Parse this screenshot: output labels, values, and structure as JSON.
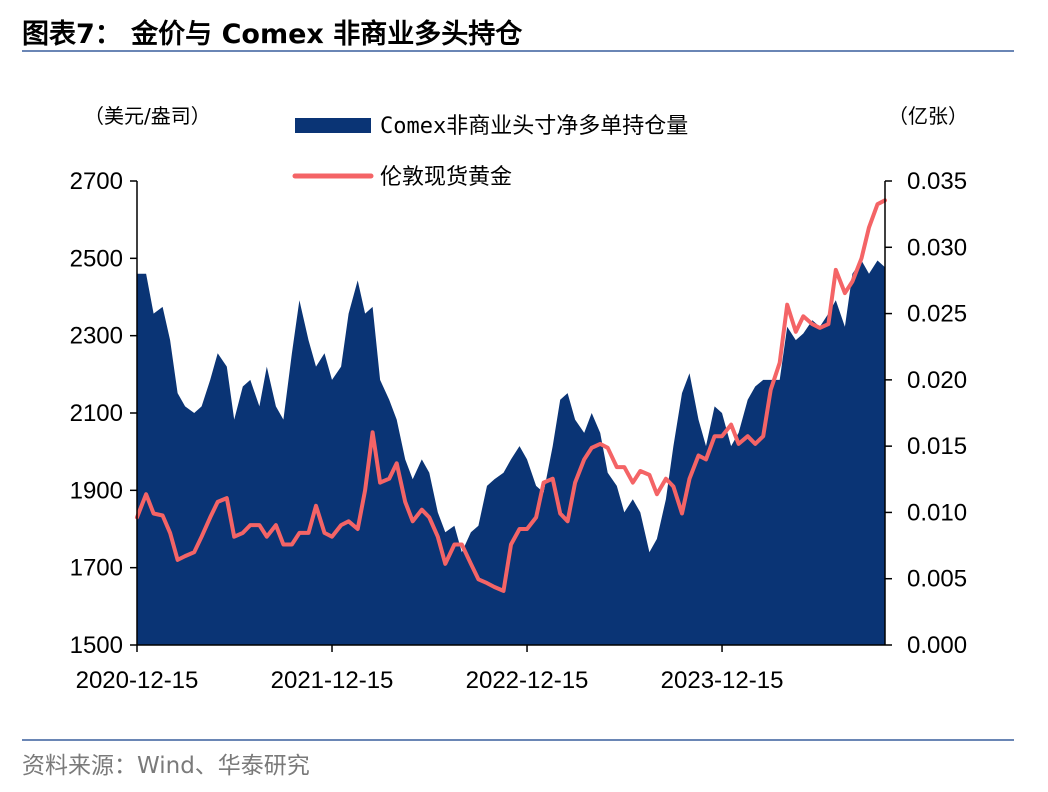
{
  "title": "图表7： 金价与 Comex 非商业多头持仓",
  "source": "资料来源：Wind、华泰研究",
  "colors": {
    "area": "#0a3475",
    "line": "#f46466",
    "rule": "#6a86b5",
    "source_text": "#7a7a7a"
  },
  "chart_data": {
    "type": "area+line",
    "left_axis": {
      "unit": "（美元/盎司）",
      "ylim": [
        1500,
        2700
      ],
      "ticks": [
        "1500",
        "1700",
        "1900",
        "2100",
        "2300",
        "2500",
        "2700"
      ]
    },
    "right_axis": {
      "unit": "（亿张）",
      "ylim": [
        0.0,
        0.035
      ],
      "ticks": [
        "0.000",
        "0.005",
        "0.010",
        "0.015",
        "0.020",
        "0.025",
        "0.030",
        "0.035"
      ]
    },
    "x_ticks": [
      "2020-12-15",
      "2021-12-15",
      "2022-12-15",
      "2023-12-15"
    ],
    "x_range": [
      "2020-12-15",
      "2024-10-15"
    ],
    "legend_placement": "top-center",
    "series": [
      {
        "name": "Comex非商业头寸净多单持仓量",
        "kind": "area",
        "axis": "right",
        "points": [
          [
            "2020-12-15",
            0.028
          ],
          [
            "2021-01-01",
            0.028
          ],
          [
            "2021-01-15",
            0.025
          ],
          [
            "2021-02-01",
            0.0255
          ],
          [
            "2021-02-15",
            0.023
          ],
          [
            "2021-03-01",
            0.019
          ],
          [
            "2021-03-15",
            0.018
          ],
          [
            "2021-04-01",
            0.0175
          ],
          [
            "2021-04-15",
            0.018
          ],
          [
            "2021-05-01",
            0.02
          ],
          [
            "2021-05-15",
            0.022
          ],
          [
            "2021-06-01",
            0.021
          ],
          [
            "2021-06-15",
            0.017
          ],
          [
            "2021-07-01",
            0.0195
          ],
          [
            "2021-07-15",
            0.02
          ],
          [
            "2021-08-01",
            0.018
          ],
          [
            "2021-08-15",
            0.021
          ],
          [
            "2021-09-01",
            0.018
          ],
          [
            "2021-09-15",
            0.017
          ],
          [
            "2021-10-01",
            0.022
          ],
          [
            "2021-10-15",
            0.026
          ],
          [
            "2021-11-01",
            0.023
          ],
          [
            "2021-11-15",
            0.021
          ],
          [
            "2021-12-01",
            0.022
          ],
          [
            "2021-12-15",
            0.02
          ],
          [
            "2022-01-01",
            0.021
          ],
          [
            "2022-01-15",
            0.025
          ],
          [
            "2022-02-01",
            0.0275
          ],
          [
            "2022-02-15",
            0.025
          ],
          [
            "2022-03-01",
            0.0255
          ],
          [
            "2022-03-15",
            0.02
          ],
          [
            "2022-04-01",
            0.0185
          ],
          [
            "2022-04-15",
            0.017
          ],
          [
            "2022-05-01",
            0.014
          ],
          [
            "2022-05-15",
            0.0125
          ],
          [
            "2022-06-01",
            0.014
          ],
          [
            "2022-06-15",
            0.013
          ],
          [
            "2022-07-01",
            0.01
          ],
          [
            "2022-07-15",
            0.0085
          ],
          [
            "2022-08-01",
            0.009
          ],
          [
            "2022-08-15",
            0.007
          ],
          [
            "2022-09-01",
            0.0085
          ],
          [
            "2022-09-15",
            0.009
          ],
          [
            "2022-10-01",
            0.012
          ],
          [
            "2022-10-15",
            0.0125
          ],
          [
            "2022-11-01",
            0.013
          ],
          [
            "2022-11-15",
            0.014
          ],
          [
            "2022-12-01",
            0.015
          ],
          [
            "2022-12-15",
            0.014
          ],
          [
            "2023-01-01",
            0.012
          ],
          [
            "2023-01-15",
            0.0115
          ],
          [
            "2023-02-01",
            0.015
          ],
          [
            "2023-02-15",
            0.0185
          ],
          [
            "2023-03-01",
            0.019
          ],
          [
            "2023-03-15",
            0.017
          ],
          [
            "2023-04-01",
            0.016
          ],
          [
            "2023-04-15",
            0.0175
          ],
          [
            "2023-05-01",
            0.016
          ],
          [
            "2023-05-15",
            0.013
          ],
          [
            "2023-06-01",
            0.012
          ],
          [
            "2023-06-15",
            0.01
          ],
          [
            "2023-07-01",
            0.011
          ],
          [
            "2023-07-15",
            0.01
          ],
          [
            "2023-08-01",
            0.007
          ],
          [
            "2023-08-15",
            0.008
          ],
          [
            "2023-09-01",
            0.011
          ],
          [
            "2023-09-15",
            0.015
          ],
          [
            "2023-10-01",
            0.019
          ],
          [
            "2023-10-15",
            0.0205
          ],
          [
            "2023-11-01",
            0.017
          ],
          [
            "2023-11-15",
            0.015
          ],
          [
            "2023-12-01",
            0.018
          ],
          [
            "2023-12-15",
            0.0175
          ],
          [
            "2024-01-01",
            0.015
          ],
          [
            "2024-01-15",
            0.016
          ],
          [
            "2024-02-01",
            0.0185
          ],
          [
            "2024-02-15",
            0.0195
          ],
          [
            "2024-03-01",
            0.02
          ],
          [
            "2024-03-15",
            0.02
          ],
          [
            "2024-04-01",
            0.02
          ],
          [
            "2024-04-15",
            0.024
          ],
          [
            "2024-05-01",
            0.023
          ],
          [
            "2024-05-15",
            0.0235
          ],
          [
            "2024-06-01",
            0.0245
          ],
          [
            "2024-06-15",
            0.024
          ],
          [
            "2024-07-01",
            0.025
          ],
          [
            "2024-07-15",
            0.026
          ],
          [
            "2024-08-01",
            0.024
          ],
          [
            "2024-08-15",
            0.028
          ],
          [
            "2024-09-01",
            0.029
          ],
          [
            "2024-09-15",
            0.028
          ],
          [
            "2024-10-01",
            0.029
          ],
          [
            "2024-10-15",
            0.0285
          ]
        ]
      },
      {
        "name": "伦敦现货黄金",
        "kind": "line",
        "axis": "left",
        "points": [
          [
            "2020-12-15",
            1830
          ],
          [
            "2021-01-01",
            1890
          ],
          [
            "2021-01-15",
            1840
          ],
          [
            "2021-02-01",
            1835
          ],
          [
            "2021-02-15",
            1790
          ],
          [
            "2021-03-01",
            1720
          ],
          [
            "2021-03-15",
            1730
          ],
          [
            "2021-04-01",
            1740
          ],
          [
            "2021-04-15",
            1780
          ],
          [
            "2021-05-01",
            1830
          ],
          [
            "2021-05-15",
            1870
          ],
          [
            "2021-06-01",
            1880
          ],
          [
            "2021-06-15",
            1780
          ],
          [
            "2021-07-01",
            1790
          ],
          [
            "2021-07-15",
            1810
          ],
          [
            "2021-08-01",
            1810
          ],
          [
            "2021-08-15",
            1780
          ],
          [
            "2021-09-01",
            1810
          ],
          [
            "2021-09-15",
            1760
          ],
          [
            "2021-10-01",
            1760
          ],
          [
            "2021-10-15",
            1790
          ],
          [
            "2021-11-01",
            1790
          ],
          [
            "2021-11-15",
            1860
          ],
          [
            "2021-12-01",
            1790
          ],
          [
            "2021-12-15",
            1780
          ],
          [
            "2022-01-01",
            1810
          ],
          [
            "2022-01-15",
            1820
          ],
          [
            "2022-02-01",
            1800
          ],
          [
            "2022-02-15",
            1900
          ],
          [
            "2022-03-01",
            2050
          ],
          [
            "2022-03-15",
            1920
          ],
          [
            "2022-04-01",
            1930
          ],
          [
            "2022-04-15",
            1970
          ],
          [
            "2022-05-01",
            1870
          ],
          [
            "2022-05-15",
            1820
          ],
          [
            "2022-06-01",
            1850
          ],
          [
            "2022-06-15",
            1830
          ],
          [
            "2022-07-01",
            1780
          ],
          [
            "2022-07-15",
            1710
          ],
          [
            "2022-08-01",
            1760
          ],
          [
            "2022-08-15",
            1760
          ],
          [
            "2022-09-01",
            1710
          ],
          [
            "2022-09-15",
            1670
          ],
          [
            "2022-10-01",
            1660
          ],
          [
            "2022-10-15",
            1650
          ],
          [
            "2022-11-01",
            1640
          ],
          [
            "2022-11-15",
            1760
          ],
          [
            "2022-12-01",
            1800
          ],
          [
            "2022-12-15",
            1800
          ],
          [
            "2023-01-01",
            1830
          ],
          [
            "2023-01-15",
            1920
          ],
          [
            "2023-02-01",
            1930
          ],
          [
            "2023-02-15",
            1840
          ],
          [
            "2023-03-01",
            1820
          ],
          [
            "2023-03-15",
            1920
          ],
          [
            "2023-04-01",
            1980
          ],
          [
            "2023-04-15",
            2010
          ],
          [
            "2023-05-01",
            2020
          ],
          [
            "2023-05-15",
            2010
          ],
          [
            "2023-06-01",
            1960
          ],
          [
            "2023-06-15",
            1960
          ],
          [
            "2023-07-01",
            1920
          ],
          [
            "2023-07-15",
            1950
          ],
          [
            "2023-08-01",
            1940
          ],
          [
            "2023-08-15",
            1890
          ],
          [
            "2023-09-01",
            1930
          ],
          [
            "2023-09-15",
            1910
          ],
          [
            "2023-10-01",
            1840
          ],
          [
            "2023-10-15",
            1930
          ],
          [
            "2023-11-01",
            1990
          ],
          [
            "2023-11-15",
            1980
          ],
          [
            "2023-12-01",
            2040
          ],
          [
            "2023-12-15",
            2040
          ],
          [
            "2024-01-01",
            2070
          ],
          [
            "2024-01-15",
            2020
          ],
          [
            "2024-02-01",
            2040
          ],
          [
            "2024-02-15",
            2020
          ],
          [
            "2024-03-01",
            2040
          ],
          [
            "2024-03-15",
            2160
          ],
          [
            "2024-04-01",
            2230
          ],
          [
            "2024-04-15",
            2380
          ],
          [
            "2024-05-01",
            2310
          ],
          [
            "2024-05-15",
            2350
          ],
          [
            "2024-06-01",
            2330
          ],
          [
            "2024-06-15",
            2320
          ],
          [
            "2024-07-01",
            2330
          ],
          [
            "2024-07-15",
            2470
          ],
          [
            "2024-08-01",
            2410
          ],
          [
            "2024-08-15",
            2440
          ],
          [
            "2024-09-01",
            2500
          ],
          [
            "2024-09-15",
            2580
          ],
          [
            "2024-10-01",
            2640
          ],
          [
            "2024-10-15",
            2650
          ]
        ]
      }
    ]
  }
}
